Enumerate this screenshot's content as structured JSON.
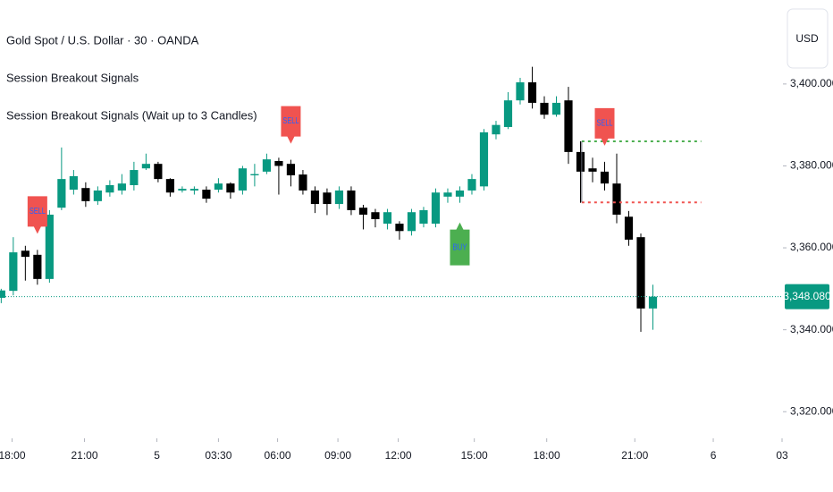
{
  "chart_data": {
    "type": "candlestick",
    "title": "Gold Spot / U.S. Dollar · 30 · OANDA",
    "subtitles": [
      "Session Breakout Signals",
      "Session Breakout Signals (Wait up to 3 Candles)"
    ],
    "currency": "USD",
    "up_color": "#089981",
    "down_color": "#000000",
    "x": [
      0,
      1,
      2,
      3,
      4,
      5,
      6,
      7,
      8,
      9,
      10,
      11,
      12,
      13,
      14,
      15,
      16,
      17,
      18,
      19,
      20,
      21,
      22,
      23,
      24,
      25,
      26,
      27,
      28,
      29,
      30,
      31,
      32,
      33,
      34,
      35,
      36,
      37,
      38,
      39,
      40,
      41,
      42,
      43,
      44,
      45,
      46,
      47,
      48,
      49,
      50,
      51,
      52,
      53,
      54
    ],
    "open": [
      3347.8,
      3349.5,
      3359.3,
      3358.3,
      3352.4,
      3369.8,
      3374.2,
      3374.6,
      3371.4,
      3373.5,
      3374,
      3375.3,
      3379.4,
      3380.5,
      3376.8,
      3374,
      3374,
      3374.2,
      3374.2,
      3375.7,
      3374,
      3377.7,
      3378.6,
      3381.2,
      3380.5,
      3377.9,
      3374,
      3373.5,
      3370.7,
      3374,
      3369.8,
      3368.7,
      3365.9,
      3365.9,
      3364.1,
      3365.9,
      3365.9,
      3372.5,
      3372.5,
      3374,
      3375,
      3387.7,
      3389.5,
      3396,
      3400.4,
      3395.4,
      3392.5,
      3396,
      3383.4,
      3379.4,
      3378.6,
      3375.7,
      3367.6,
      3362.6,
      3345.2
    ],
    "high": [
      3350,
      3362.6,
      3360.5,
      3359.5,
      3369.2,
      3384.5,
      3379,
      3376,
      3375,
      3376.5,
      3378,
      3381,
      3383,
      3381,
      3377,
      3375,
      3375,
      3375,
      3377,
      3376,
      3380,
      3380.5,
      3383,
      3382,
      3381.5,
      3379,
      3375,
      3374.5,
      3375,
      3375,
      3370.5,
      3369.5,
      3369.5,
      3366.5,
      3369.5,
      3370,
      3374.5,
      3374.5,
      3375,
      3378,
      3389,
      3391,
      3398,
      3401.5,
      3404.2,
      3397,
      3397,
      3399.3,
      3386,
      3382,
      3381,
      3383,
      3369,
      3363.5,
      3351
    ],
    "low": [
      3346.5,
      3348.4,
      3352,
      3351,
      3351.5,
      3369.2,
      3373,
      3370,
      3370.5,
      3372.5,
      3373,
      3374,
      3379,
      3376,
      3372.5,
      3373.5,
      3373,
      3371,
      3373.5,
      3372,
      3373,
      3375,
      3378,
      3373,
      3375,
      3373,
      3368.5,
      3368,
      3369.5,
      3368,
      3364.5,
      3365,
      3364.5,
      3362,
      3363,
      3365,
      3365,
      3371,
      3371,
      3373,
      3374,
      3386.5,
      3389,
      3395,
      3394,
      3391.5,
      3392,
      3380.5,
      3371,
      3376,
      3374,
      3366,
      3360.5,
      3339.5,
      3340
    ],
    "close": [
      3349.6,
      3358.9,
      3357.8,
      3352.4,
      3368.1,
      3376.8,
      3377.5,
      3371.4,
      3374,
      3375.3,
      3375.7,
      3379,
      3380.5,
      3376.8,
      3373.5,
      3374.4,
      3374.4,
      3372,
      3375.7,
      3373.5,
      3379.4,
      3378,
      3381.6,
      3380,
      3377.7,
      3374,
      3370.7,
      3370.7,
      3374,
      3369.2,
      3368.1,
      3367,
      3368.7,
      3364.1,
      3368.7,
      3369.2,
      3373.5,
      3373.5,
      3374,
      3376.8,
      3388.2,
      3390,
      3396,
      3400.4,
      3395.4,
      3392.5,
      3395.4,
      3383.4,
      3378.6,
      3378.6,
      3375.7,
      3368.1,
      3362,
      3345.2,
      3348.08
    ],
    "xlim": [
      -0.1,
      64.7
    ],
    "xticks": [
      {
        "value": 0.9,
        "label": "18:00"
      },
      {
        "value": 6.9,
        "label": "21:00"
      },
      {
        "value": 12.9,
        "label": "5"
      },
      {
        "value": 18,
        "label": "03:30"
      },
      {
        "value": 22.9,
        "label": "06:00"
      },
      {
        "value": 27.9,
        "label": "09:00"
      },
      {
        "value": 32.9,
        "label": "12:00"
      },
      {
        "value": 39.2,
        "label": "15:00"
      },
      {
        "value": 45.2,
        "label": "18:00"
      },
      {
        "value": 52.5,
        "label": "21:00"
      },
      {
        "value": 59,
        "label": "6"
      },
      {
        "value": 64.7,
        "label": "03"
      }
    ],
    "ylim": [
      3313.5,
      3420.5
    ],
    "yticks": [
      {
        "value": 3320,
        "label": "3,320.000"
      },
      {
        "value": 3340,
        "label": "3,340.000"
      },
      {
        "value": 3360,
        "label": "3,360.000"
      },
      {
        "value": 3380,
        "label": "3,380.000"
      },
      {
        "value": 3400,
        "label": "3,400.000"
      }
    ],
    "signals": [
      {
        "index": 3,
        "label": "SELL",
        "color": "#f05350"
      },
      {
        "index": 24,
        "label": "SELL",
        "color": "#f05350"
      },
      {
        "index": 38,
        "label": "BUY",
        "color": "#4caf50"
      },
      {
        "index": 50,
        "label": "SELL",
        "color": "#f05350"
      }
    ],
    "levels": [
      {
        "value": 3386,
        "from": 48.1,
        "to": 58,
        "color": "#4caf50"
      },
      {
        "value": 3371.1,
        "from": 48.1,
        "to": 58,
        "color": "#f05350"
      }
    ],
    "last_price": {
      "value": 3348.08,
      "label": "3,348.080",
      "color": "#089981"
    }
  }
}
